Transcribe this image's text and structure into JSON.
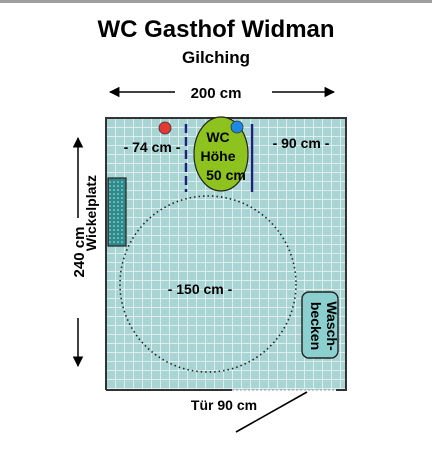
{
  "title": "WC Gasthof Widman",
  "subtitle": "Gilching",
  "dimensions": {
    "width": "200 cm",
    "height": "240 cm",
    "left_clearance": "- 74 cm -",
    "right_clearance": "- 90 cm -",
    "turning_circle": "- 150 cm -",
    "door": "Tür 90 cm"
  },
  "fixtures": {
    "toilet_label": "WC",
    "toilet_height_label": "Höhe",
    "toilet_height_value": "50 cm",
    "changing_table": "Wickelplatz",
    "sink_line1": "Wasch-",
    "sink_line2": "becken"
  },
  "colors": {
    "floor": "#a8d4d4",
    "tile_grid": "#ffffff",
    "toilet": "#8dc21f",
    "changing_table": "#2e8b8b",
    "sink": "#8ccfcf",
    "grab_bar": "#1a237e",
    "red_dot": "#e53935",
    "blue_dot": "#1e88e5"
  }
}
